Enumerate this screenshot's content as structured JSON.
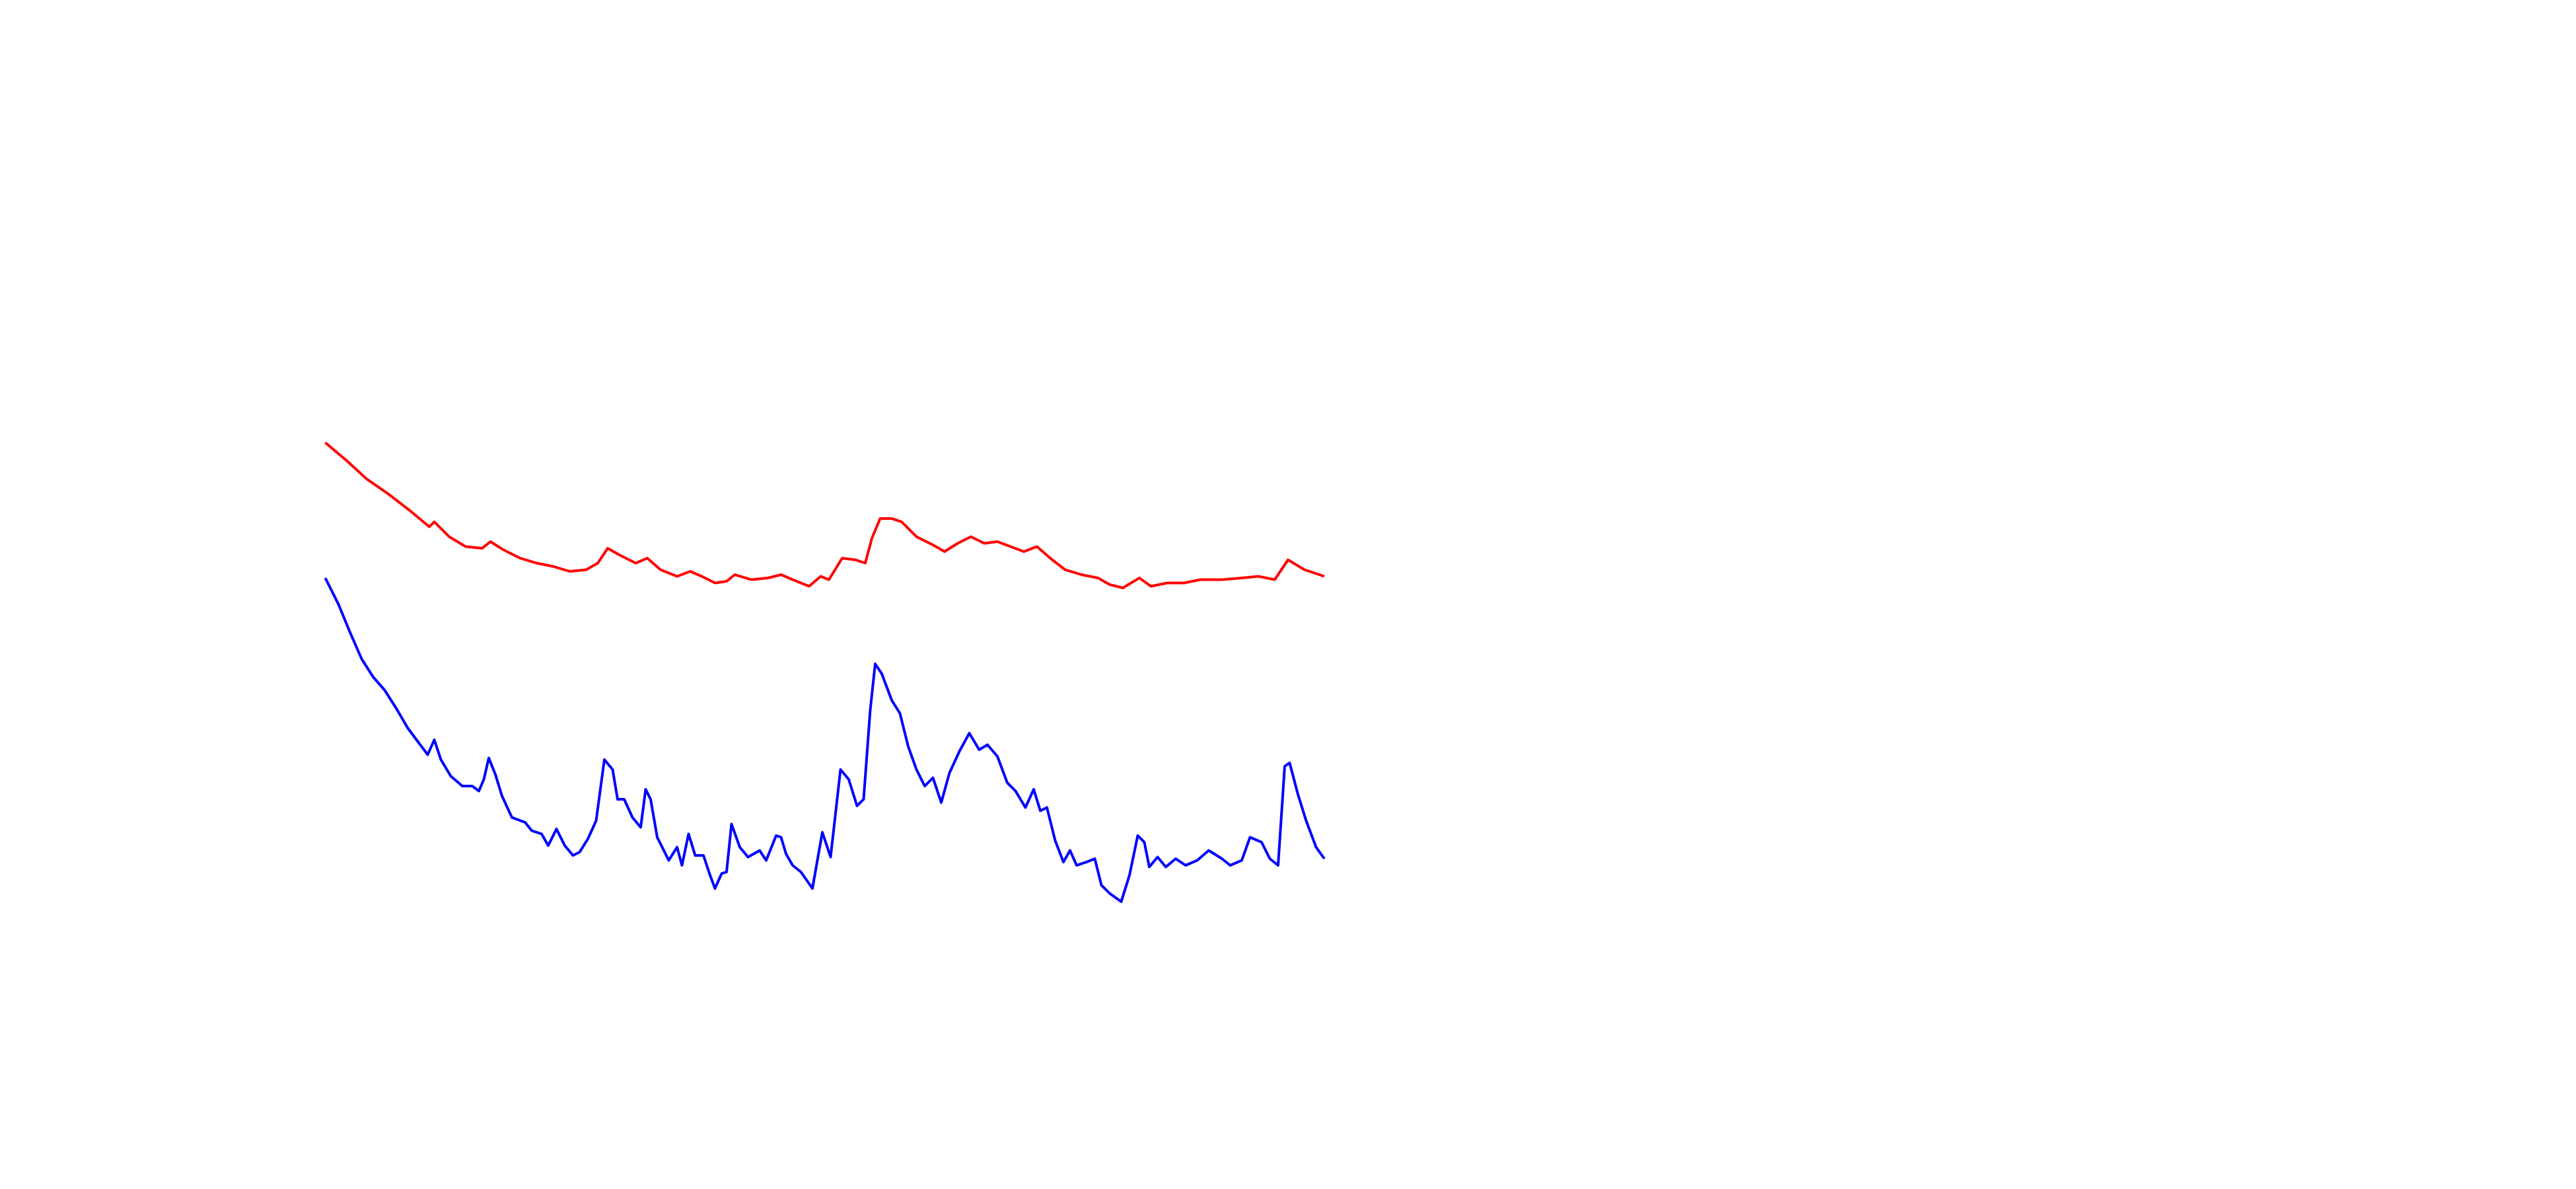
{
  "chart_data": {
    "type": "line",
    "xlim": [
      0,
      1560
    ],
    "ylim": [
      0,
      720
    ],
    "series": [
      {
        "color": "#ff0000",
        "x": [
          197,
          210,
          222,
          235,
          248,
          260,
          263,
          272,
          282,
          292,
          297,
          305,
          315,
          325,
          335,
          345,
          355,
          362,
          368,
          375,
          385,
          392,
          400,
          410,
          418,
          425,
          433,
          440,
          445,
          455,
          465,
          473,
          480,
          490,
          497,
          502,
          510,
          518,
          524,
          528,
          533,
          540,
          546,
          555,
          565,
          572,
          580,
          588,
          596,
          604,
          612,
          620,
          628,
          636,
          645,
          655,
          665,
          672,
          680,
          690,
          697,
          707,
          717,
          727,
          740,
          752,
          762,
          772,
          780,
          790,
          802
        ],
        "values": [
          452,
          441,
          430,
          421,
          411,
          401,
          404,
          395,
          389,
          388,
          392,
          387,
          382,
          379,
          377,
          374,
          375,
          379,
          388,
          384,
          379,
          382,
          375,
          371,
          374,
          371,
          367,
          368,
          372,
          369,
          370,
          372,
          369,
          365,
          371,
          369,
          382,
          381,
          379,
          394,
          406,
          406,
          404,
          395,
          390,
          386,
          391,
          395,
          391,
          392,
          389,
          386,
          389,
          382,
          375,
          372,
          370,
          366,
          364,
          370,
          365,
          367,
          367,
          369,
          369,
          370,
          371,
          369,
          381,
          375,
          371
        ]
      },
      {
        "color": "#0000ff",
        "x": [
          197,
          205,
          212,
          219,
          226,
          233,
          240,
          247,
          253,
          259,
          263,
          267,
          273,
          280,
          286,
          290,
          293,
          296,
          300,
          304,
          310,
          318,
          322,
          328,
          332,
          337,
          342,
          347,
          351,
          356,
          361,
          366,
          371,
          374,
          378,
          383,
          388,
          391,
          394,
          398,
          402,
          405,
          410,
          413,
          417,
          421,
          426,
          430,
          433,
          437,
          440,
          443,
          448,
          453,
          460,
          464,
          470,
          473,
          476,
          480,
          485,
          492,
          498,
          503,
          509,
          514,
          519,
          523,
          527,
          530,
          534,
          540,
          545,
          550,
          555,
          560,
          565,
          570,
          575,
          581,
          587,
          593,
          598,
          604,
          610,
          615,
          621,
          626,
          630,
          634,
          639,
          644,
          648,
          652,
          658,
          663,
          667,
          672,
          679,
          684,
          689,
          693,
          696,
          701,
          706,
          712,
          718,
          725,
          732,
          740,
          745,
          752,
          757,
          764,
          769,
          774,
          778,
          781,
          786,
          791,
          797,
          802
        ],
        "values": [
          370,
          354,
          337,
          321,
          310,
          302,
          291,
          279,
          271,
          263,
          272,
          260,
          250,
          244,
          244,
          241,
          248,
          261,
          251,
          238,
          225,
          222,
          217,
          215,
          208,
          218,
          208,
          202,
          204,
          212,
          223,
          260,
          254,
          236,
          236,
          225,
          219,
          242,
          236,
          213,
          205,
          199,
          207,
          196,
          215,
          202,
          202,
          190,
          182,
          191,
          192,
          221,
          207,
          201,
          205,
          199,
          214,
          213,
          203,
          196,
          192,
          182,
          216,
          201,
          254,
          248,
          232,
          236,
          290,
          318,
          312,
          296,
          288,
          268,
          254,
          244,
          249,
          234,
          252,
          265,
          276,
          266,
          269,
          262,
          246,
          241,
          231,
          242,
          229,
          231,
          211,
          198,
          205,
          196,
          198,
          200,
          184,
          179,
          174,
          190,
          214,
          210,
          195,
          201,
          195,
          200,
          196,
          199,
          205,
          200,
          196,
          199,
          213,
          210,
          200,
          196,
          256,
          258,
          239,
          223,
          207,
          200
        ]
      }
    ]
  }
}
